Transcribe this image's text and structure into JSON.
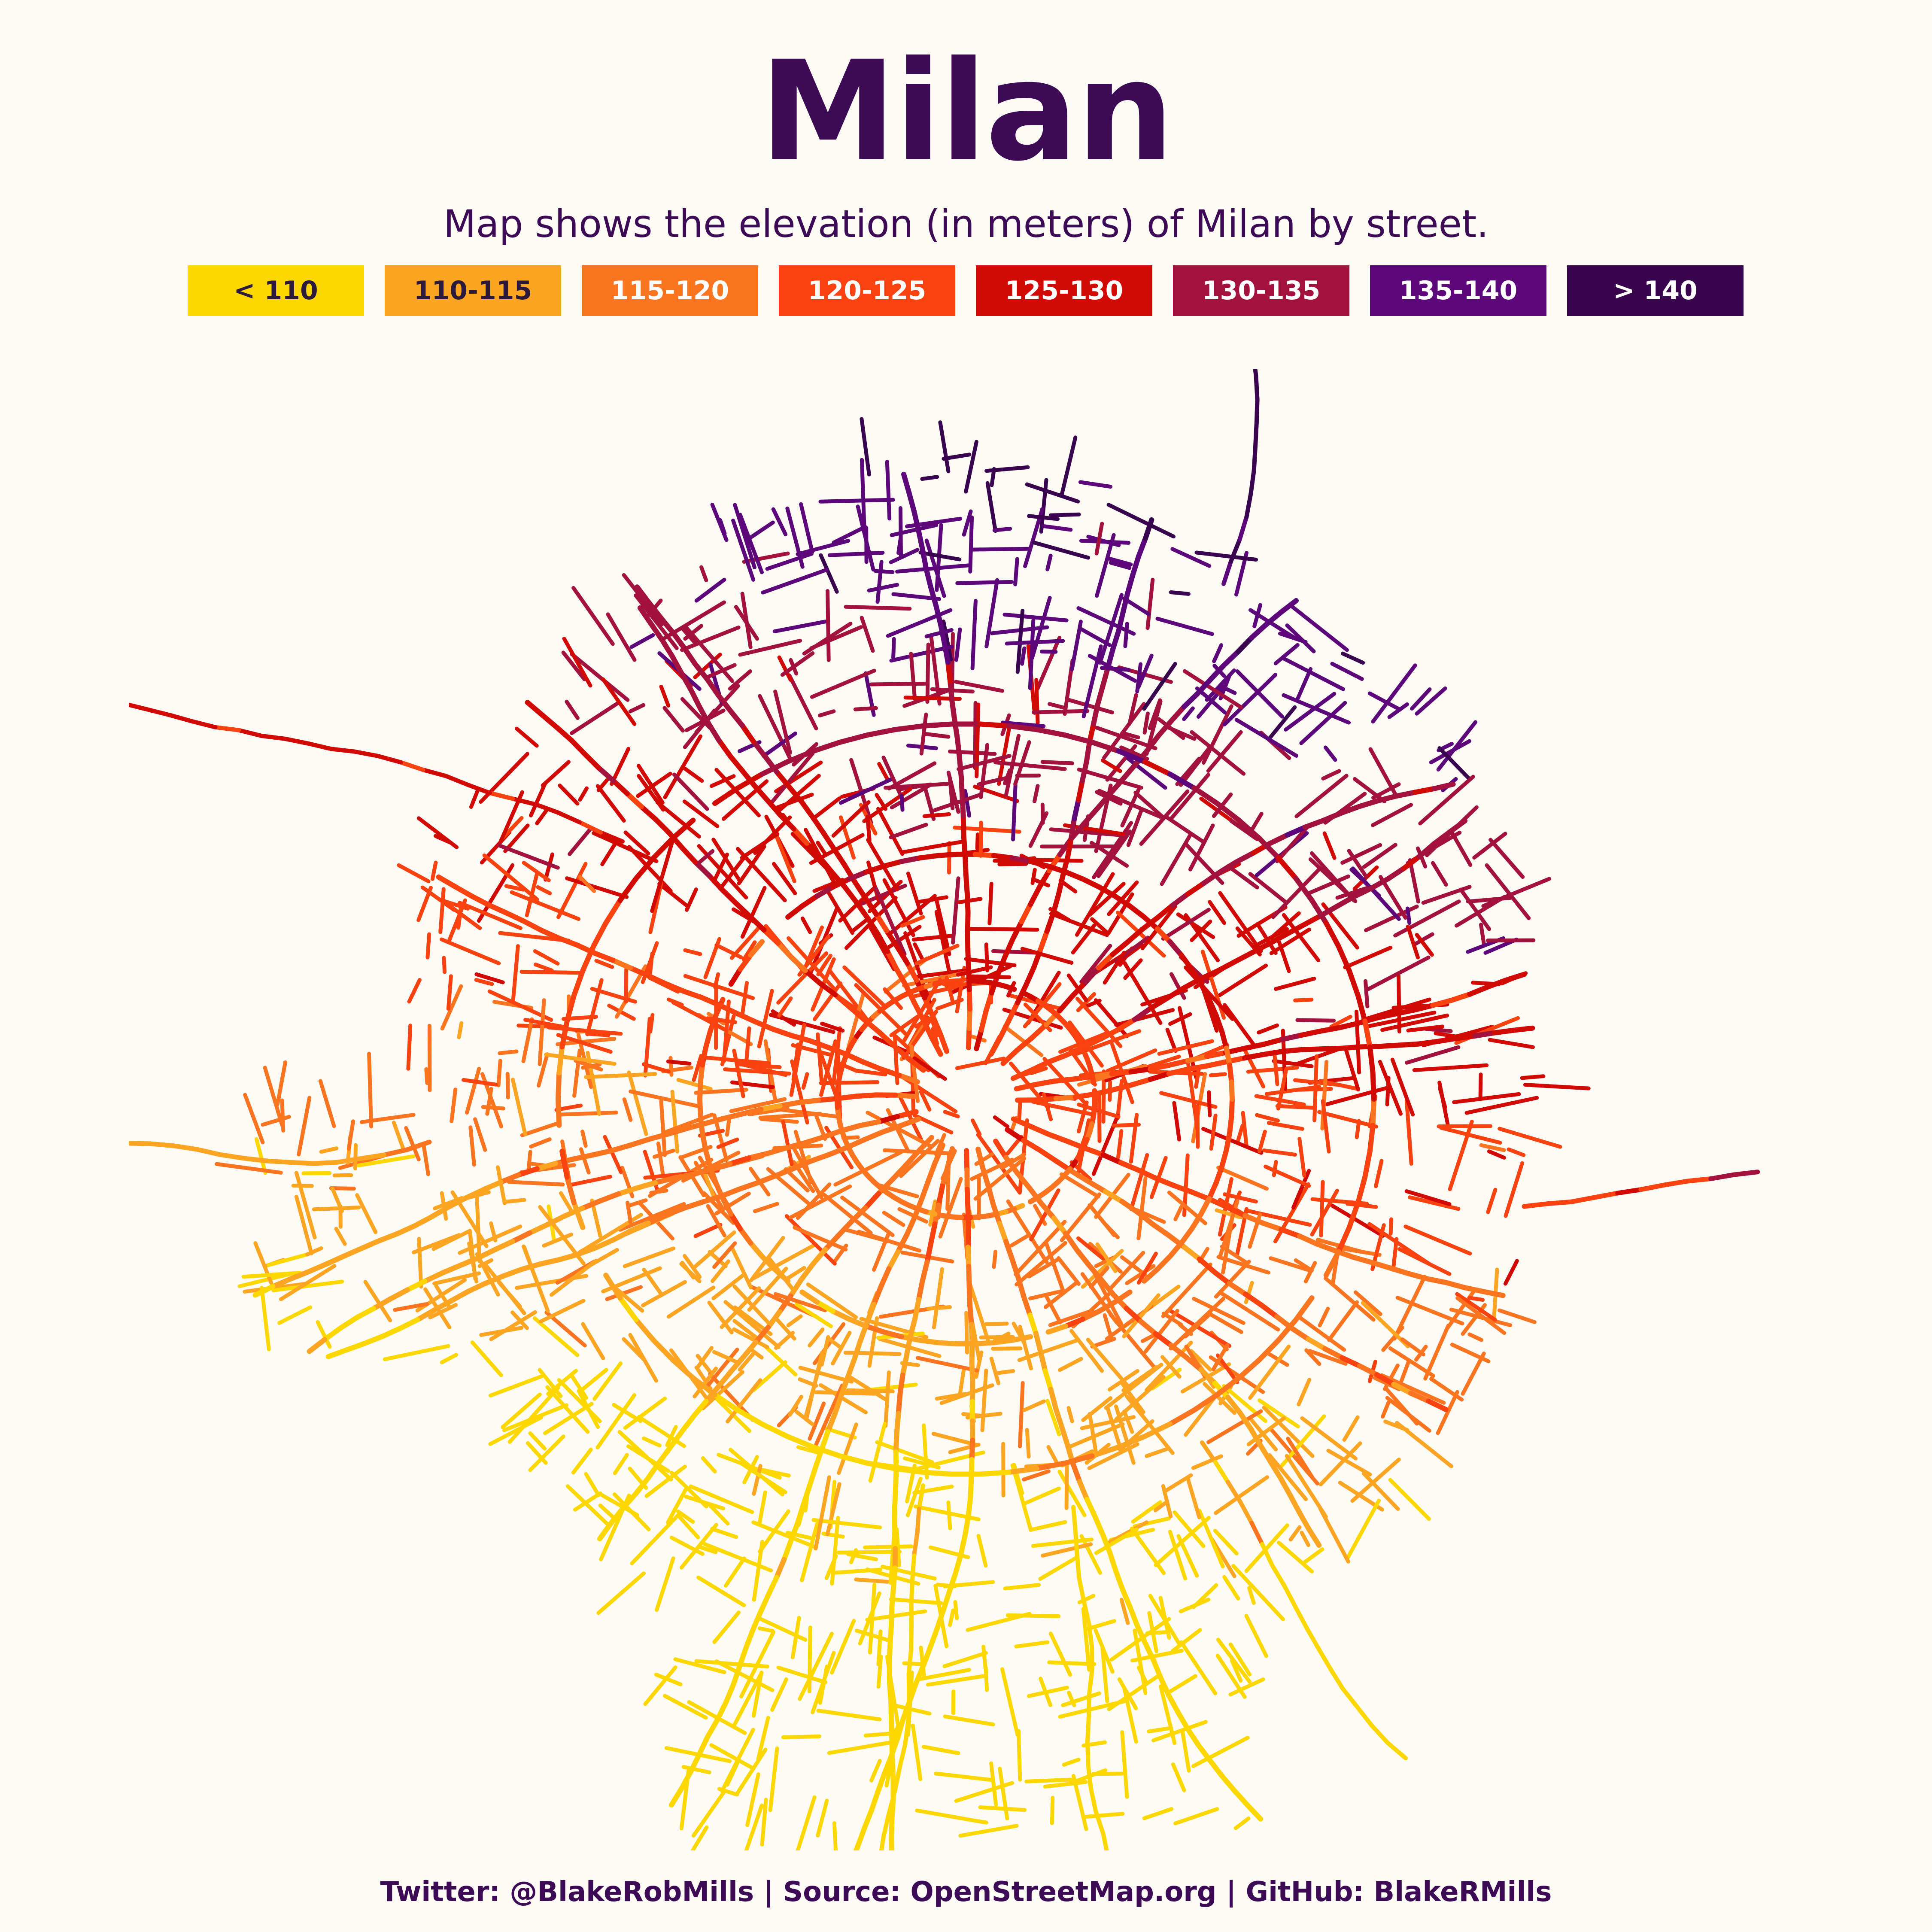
{
  "title": "Milan",
  "subtitle": "Map shows the elevation (in meters) of Milan by street.",
  "legend": [
    {
      "label": "< 110",
      "color": "#fcd800",
      "text_color": "#2b1a3a"
    },
    {
      "label": "110-115",
      "color": "#fba522",
      "text_color": "#2b1a3a"
    },
    {
      "label": "115-120",
      "color": "#fb7420",
      "text_color": "#ffffff"
    },
    {
      "label": "120-125",
      "color": "#f8420f",
      "text_color": "#ffffff"
    },
    {
      "label": "125-130",
      "color": "#d10a06",
      "text_color": "#ffffff"
    },
    {
      "label": "130-135",
      "color": "#a3113f",
      "text_color": "#ffffff"
    },
    {
      "label": "135-140",
      "color": "#5c077a",
      "text_color": "#ffffff"
    },
    {
      "label": "> 140",
      "color": "#38054e",
      "text_color": "#ffffff"
    }
  ],
  "footer": "Twitter: @BlakeRobMills | Source: OpenStreetMap.org | GitHub: BlakeRMills"
}
